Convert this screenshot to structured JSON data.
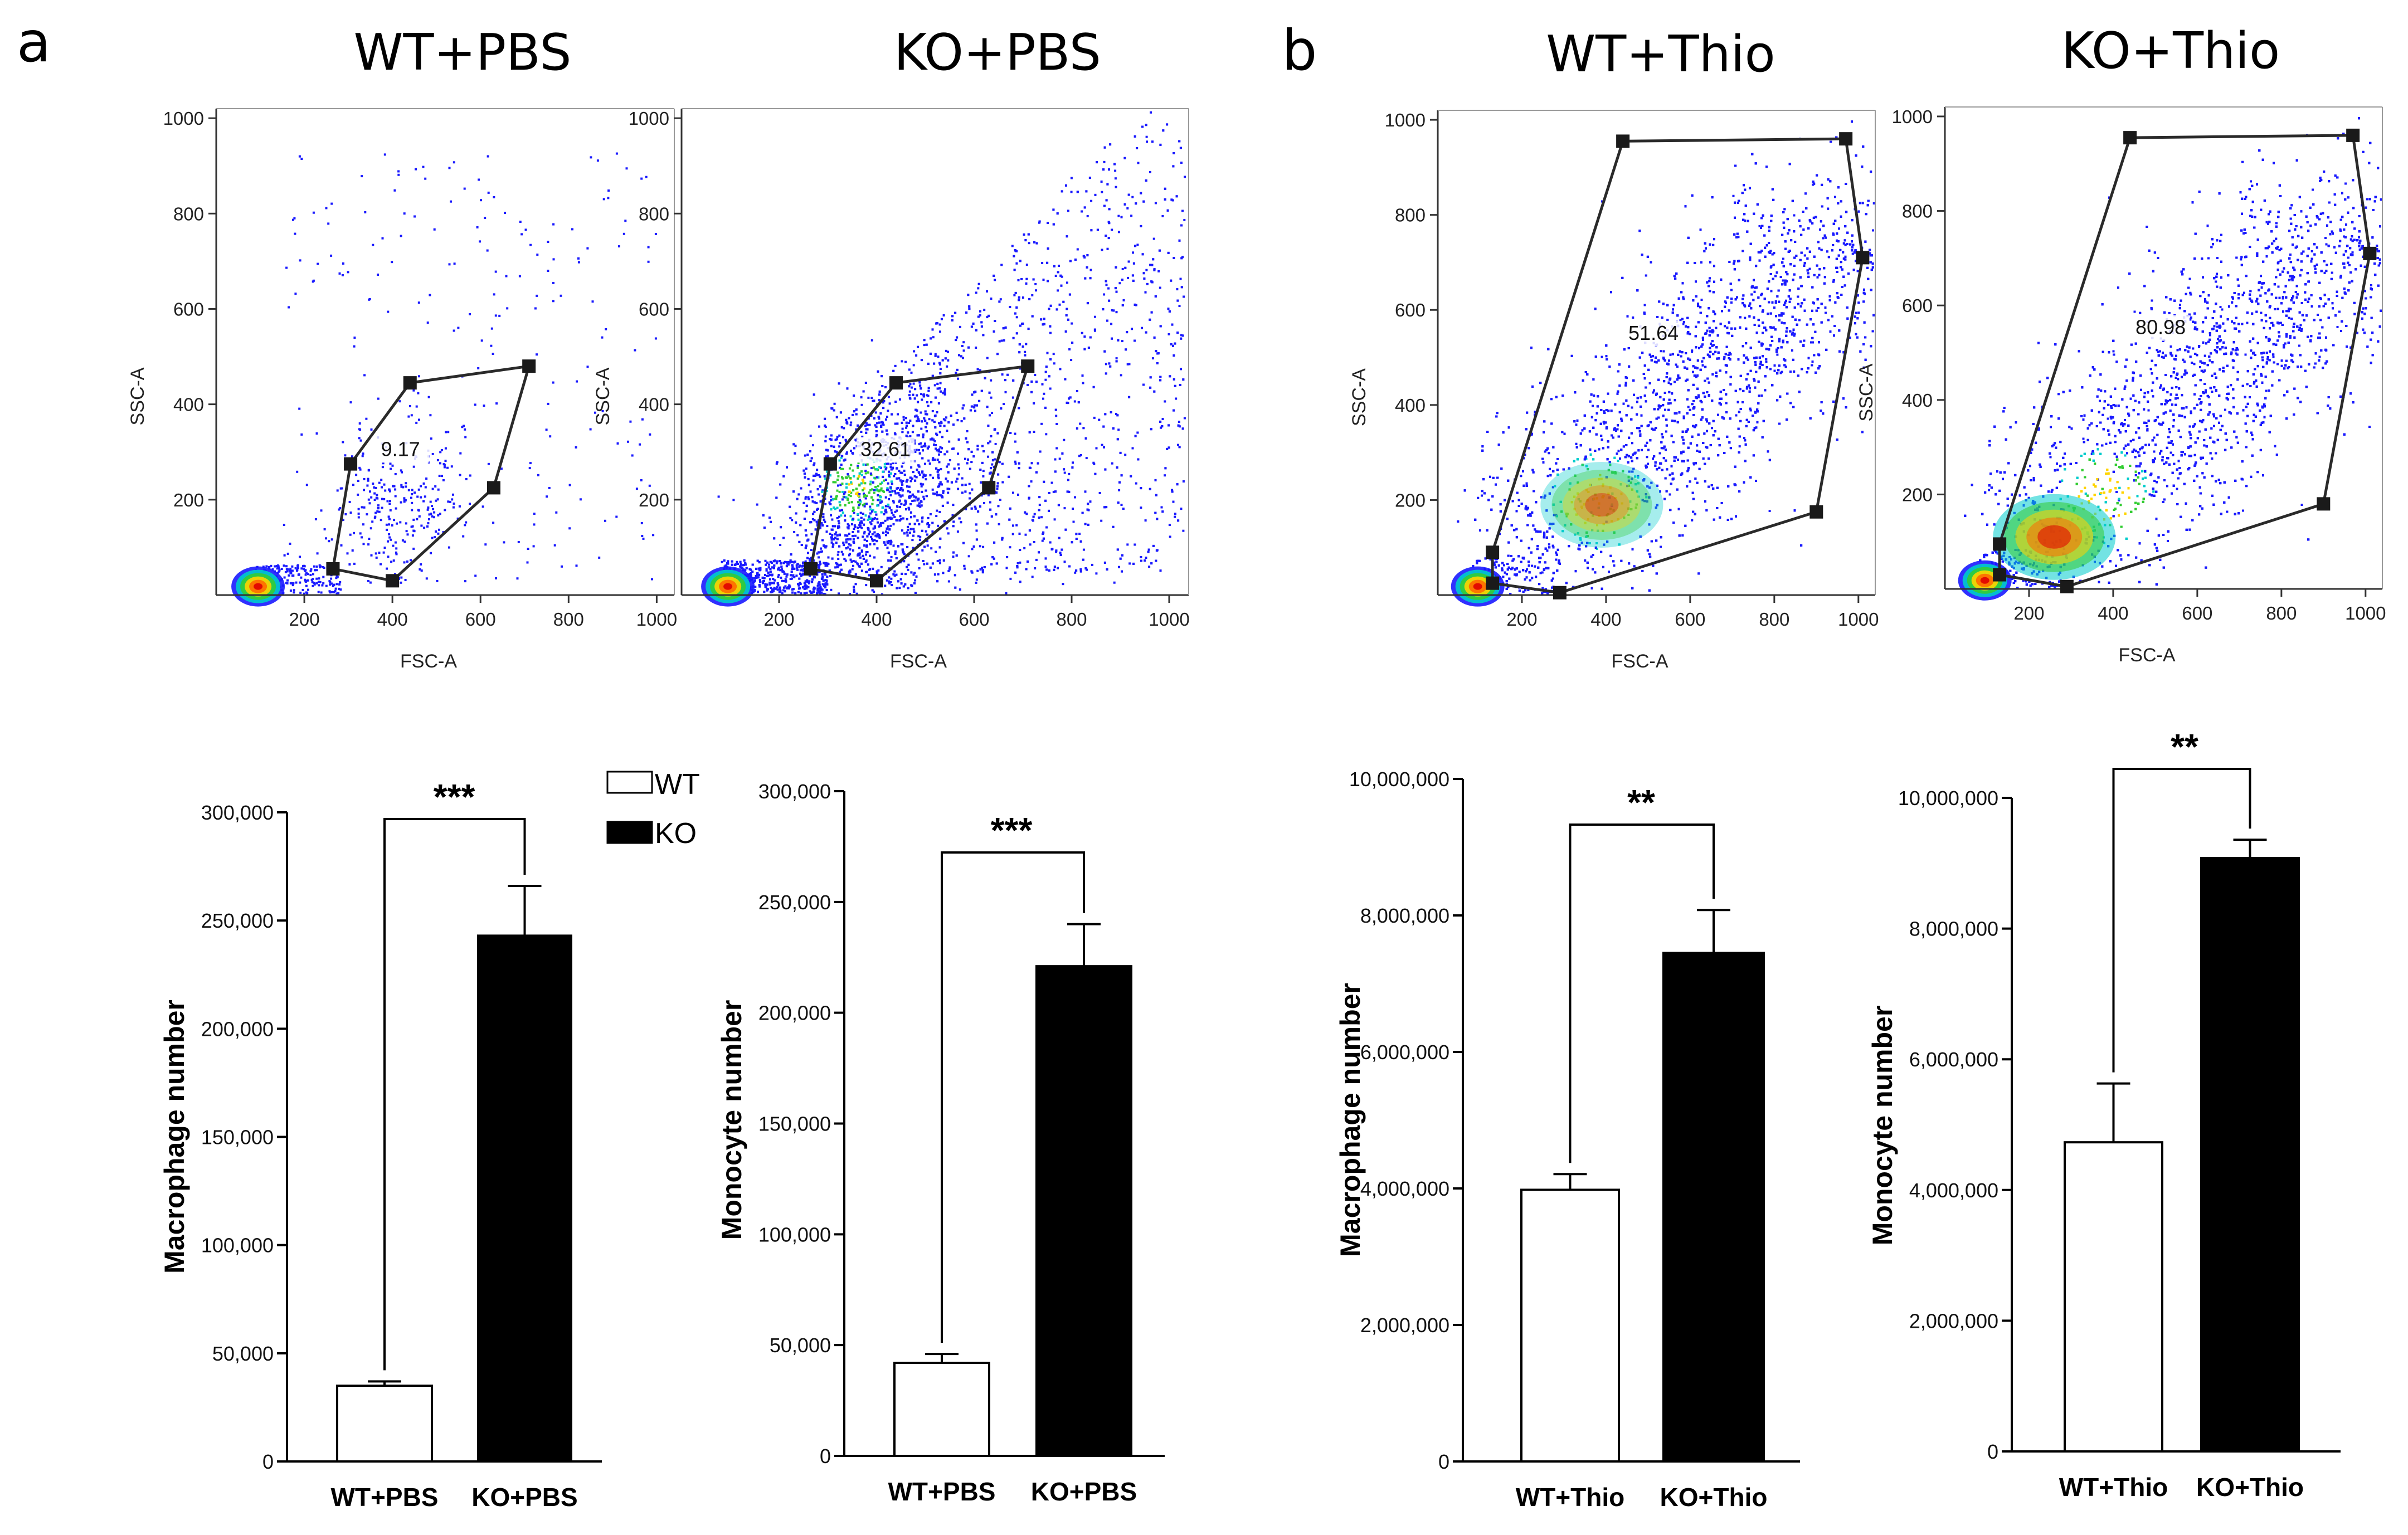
{
  "panels": [
    {
      "label": "a"
    },
    {
      "label": "b"
    }
  ],
  "legend": {
    "items": [
      {
        "label": "WT",
        "color": "#ffffff"
      },
      {
        "label": "KO",
        "color": "#000000"
      }
    ]
  },
  "chart_data": [
    {
      "type": "scatter",
      "title": "WT+PBS",
      "xlabel": "FSC-A",
      "ylabel": "SSC-A",
      "xlim": [
        0,
        1040
      ],
      "ylim": [
        0,
        1020
      ],
      "xticks": [
        "200",
        "400",
        "600",
        "800",
        "1000"
      ],
      "yticks": [
        "200",
        "400",
        "600",
        "800",
        "1000"
      ],
      "gate_label": "9.17",
      "gate": [
        [
          265,
          55
        ],
        [
          305,
          275
        ],
        [
          440,
          445
        ],
        [
          710,
          480
        ],
        [
          630,
          225
        ],
        [
          400,
          30
        ]
      ],
      "density": "sparse"
    },
    {
      "type": "scatter",
      "title": "KO+PBS",
      "xlabel": "FSC-A",
      "ylabel": "SSC-A",
      "xlim": [
        0,
        1040
      ],
      "ylim": [
        0,
        1020
      ],
      "xticks": [
        "200",
        "400",
        "600",
        "800",
        "1000"
      ],
      "yticks": [
        "200",
        "400",
        "600",
        "800",
        "1000"
      ],
      "gate_label": "32.61",
      "gate": [
        [
          265,
          55
        ],
        [
          305,
          275
        ],
        [
          440,
          445
        ],
        [
          710,
          480
        ],
        [
          630,
          225
        ],
        [
          400,
          30
        ]
      ],
      "density": "medium"
    },
    {
      "type": "scatter",
      "title": "WT+Thio",
      "xlabel": "FSC-A",
      "ylabel": "SSC-A",
      "xlim": [
        0,
        1040
      ],
      "ylim": [
        0,
        1020
      ],
      "xticks": [
        "200",
        "400",
        "600",
        "800",
        "1000"
      ],
      "yticks": [
        "200",
        "400",
        "600",
        "800",
        "1000"
      ],
      "gate_label": "51.64",
      "gate": [
        [
          130,
          25
        ],
        [
          130,
          90
        ],
        [
          440,
          955
        ],
        [
          970,
          960
        ],
        [
          1010,
          710
        ],
        [
          900,
          175
        ],
        [
          290,
          5
        ]
      ],
      "density": "dense"
    },
    {
      "type": "scatter",
      "title": "KO+Thio",
      "xlabel": "FSC-A",
      "ylabel": "SSC-A",
      "xlim": [
        0,
        1040
      ],
      "ylim": [
        0,
        1020
      ],
      "xticks": [
        "200",
        "400",
        "600",
        "800",
        "1000"
      ],
      "yticks": [
        "200",
        "400",
        "600",
        "800",
        "1000"
      ],
      "gate_label": "80.98",
      "gate": [
        [
          130,
          30
        ],
        [
          130,
          95
        ],
        [
          440,
          955
        ],
        [
          970,
          960
        ],
        [
          1010,
          710
        ],
        [
          900,
          180
        ],
        [
          290,
          5
        ]
      ],
      "density": "very-dense"
    },
    {
      "type": "bar",
      "categories": [
        "WT+PBS",
        "KO+PBS"
      ],
      "values": [
        35000,
        243000
      ],
      "errors": [
        2000,
        23000
      ],
      "colors": [
        "#ffffff",
        "#000000"
      ],
      "ylabel": "Macrophage number",
      "ylim": [
        0,
        300000
      ],
      "yticks": [
        "0",
        "50,000",
        "100,000",
        "150,000",
        "200,000",
        "250,000",
        "300,000"
      ],
      "significance": "***"
    },
    {
      "type": "bar",
      "categories": [
        "WT+PBS",
        "KO+PBS"
      ],
      "values": [
        42000,
        221000
      ],
      "errors": [
        4000,
        19000
      ],
      "colors": [
        "#ffffff",
        "#000000"
      ],
      "ylabel": "Monocyte number",
      "ylim": [
        0,
        300000
      ],
      "yticks": [
        "0",
        "50,000",
        "100,000",
        "150,000",
        "200,000",
        "250,000",
        "300,000"
      ],
      "significance": "***"
    },
    {
      "type": "bar",
      "categories": [
        "WT+Thio",
        "KO+Thio"
      ],
      "values": [
        3980000,
        7450000
      ],
      "errors": [
        230000,
        630000
      ],
      "colors": [
        "#ffffff",
        "#000000"
      ],
      "ylabel": "Macrophage number",
      "ylim": [
        0,
        10000000
      ],
      "yticks": [
        "0",
        "2,000,000",
        "4,000,000",
        "6,000,000",
        "8,000,000",
        "10,000,000"
      ],
      "significance": "**"
    },
    {
      "type": "bar",
      "categories": [
        "WT+Thio",
        "KO+Thio"
      ],
      "values": [
        4730000,
        9080000
      ],
      "errors": [
        900000,
        280000
      ],
      "colors": [
        "#ffffff",
        "#000000"
      ],
      "ylabel": "Monocyte number",
      "ylim": [
        0,
        10000000
      ],
      "yticks": [
        "0",
        "2,000,000",
        "4,000,000",
        "6,000,000",
        "8,000,000",
        "10,000,000"
      ],
      "significance": "**"
    }
  ]
}
